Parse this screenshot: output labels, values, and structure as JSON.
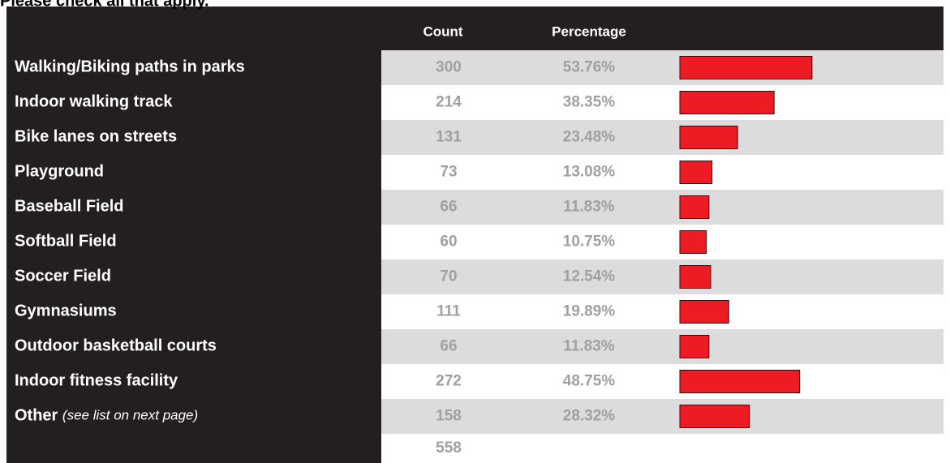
{
  "header": {
    "title": "Please check all that apply."
  },
  "table": {
    "columns": [
      "Count",
      "Percentage"
    ],
    "rows": [
      {
        "label": "Walking/Biking paths in parks",
        "count": 300,
        "percentage": {
          "value": 53.76,
          "label": "53.76%"
        }
      },
      {
        "label": "Indoor walking track",
        "count": 214,
        "percentage": {
          "value": 38.35,
          "label": "38.35%"
        }
      },
      {
        "label": "Bike lanes on streets",
        "count": 131,
        "percentage": {
          "value": 23.48,
          "label": "23.48%"
        }
      },
      {
        "label": "Playground",
        "count": 73,
        "percentage": {
          "value": 13.08,
          "label": "13.08%"
        }
      },
      {
        "label": "Baseball Field",
        "count": 66,
        "percentage": {
          "value": 11.83,
          "label": "11.83%"
        }
      },
      {
        "label": "Softball Field",
        "count": 60,
        "percentage": {
          "value": 10.75,
          "label": "10.75%"
        }
      },
      {
        "label": "Soccer Field",
        "count": 70,
        "percentage": {
          "value": 12.54,
          "label": "12.54%"
        }
      },
      {
        "label": "Gymnasiums",
        "count": 111,
        "percentage": {
          "value": 19.89,
          "label": "19.89%"
        }
      },
      {
        "label": "Outdoor basketball courts",
        "count": 66,
        "percentage": {
          "value": 11.83,
          "label": "11.83%"
        }
      },
      {
        "label": "Indoor fitness facility",
        "count": 272,
        "percentage": {
          "value": 48.75,
          "label": "48.75%"
        }
      },
      {
        "label": "Other",
        "note": "(see list on next page)",
        "count": 158,
        "percentage": {
          "value": 28.32,
          "label": "28.32%"
        }
      }
    ],
    "total": 558,
    "bar_color": "#ed1c24"
  }
}
